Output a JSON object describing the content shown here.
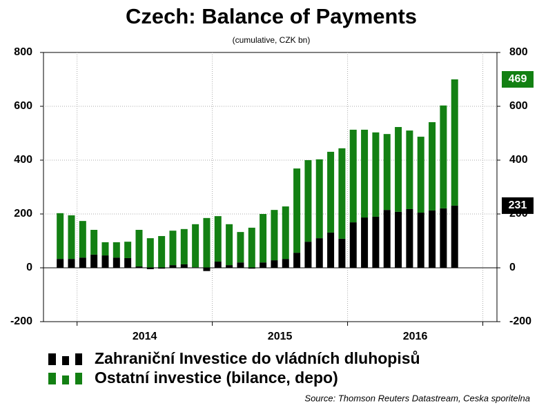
{
  "chart_data": {
    "type": "stacked_bar",
    "title": "Czech: Balance of Payments",
    "subtitle": "(cumulative, CZK bn)",
    "source": "Source: Thomson Reuters Datastream, Ceska sporitelna",
    "categories": [
      null,
      null,
      null,
      null,
      null,
      null,
      null,
      null,
      null,
      null,
      null,
      null,
      null,
      null,
      null,
      null,
      null,
      null,
      null,
      null,
      null,
      null,
      null,
      null,
      null,
      null,
      null,
      null,
      null,
      null,
      null,
      null,
      null,
      null,
      null,
      null
    ],
    "year_labels": [
      "2014",
      "2015",
      "2016"
    ],
    "series": [
      {
        "name": "Zahraniční Investice do vládních dluhopisů",
        "color": "#000000",
        "values": [
          33,
          33,
          38,
          49,
          46,
          38,
          36,
          5,
          -5,
          -3,
          10,
          13,
          2,
          -12,
          23,
          10,
          20,
          -3,
          20,
          28,
          33,
          56,
          97,
          110,
          131,
          108,
          169,
          187,
          190,
          215,
          208,
          218,
          205,
          213,
          221,
          231
        ]
      },
      {
        "name": "Ostatní investice (bilance, depo)",
        "color": "#138013",
        "values": [
          170,
          162,
          136,
          92,
          49,
          57,
          61,
          136,
          110,
          118,
          128,
          131,
          160,
          185,
          169,
          152,
          113,
          149,
          180,
          187,
          195,
          313,
          303,
          293,
          300,
          336,
          344,
          326,
          313,
          282,
          315,
          292,
          282,
          328,
          382,
          469
        ]
      }
    ],
    "ylim": [
      -200,
      800
    ],
    "yticks": [
      -200,
      0,
      200,
      400,
      600,
      800
    ],
    "y2lim": [
      -200,
      800
    ],
    "y2ticks": [
      -200,
      0,
      200,
      400,
      600,
      800
    ],
    "grid": true
  }
}
